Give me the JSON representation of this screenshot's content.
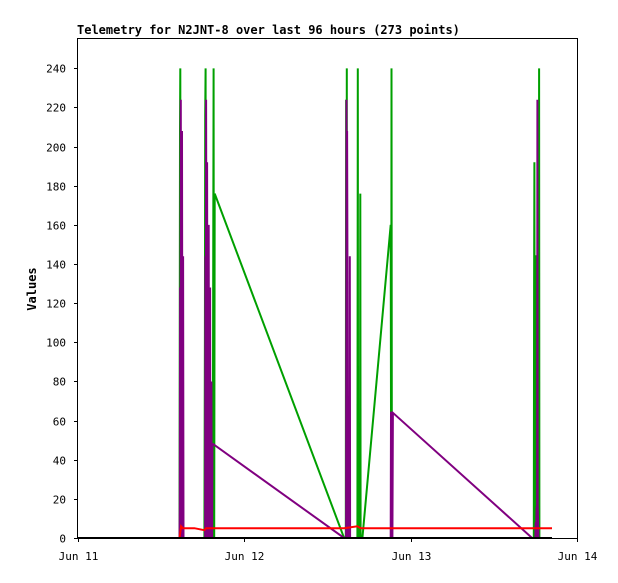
{
  "chart_data": {
    "type": "line",
    "title": "Telemetry for N2JNT-8 over last 96 hours (273 points)",
    "xlabel": "",
    "ylabel": "Values",
    "xlim": [
      0,
      3
    ],
    "ylim": [
      0,
      255
    ],
    "grid": false,
    "x_ticks": [
      {
        "value": 0,
        "label": "Jun 11"
      },
      {
        "value": 1,
        "label": "Jun 12"
      },
      {
        "value": 2,
        "label": "Jun 13"
      },
      {
        "value": 3,
        "label": "Jun 14"
      }
    ],
    "y_ticks": [
      0,
      20,
      40,
      60,
      80,
      100,
      120,
      140,
      160,
      180,
      200,
      220,
      240
    ],
    "series": [
      {
        "color": "#00a000",
        "x": [
          0.0,
          0.61,
          0.613,
          0.615,
          0.618,
          0.62,
          0.623,
          0.625,
          0.628,
          0.63,
          0.76,
          0.763,
          0.765,
          0.767,
          0.769,
          0.771,
          0.773,
          0.775,
          0.78,
          0.79,
          0.81,
          0.815,
          0.817,
          0.819,
          0.822,
          1.6,
          1.61,
          1.612,
          1.614,
          1.616,
          1.618,
          1.62,
          1.622,
          1.624,
          1.65,
          1.68,
          1.682,
          1.684,
          1.69,
          1.695,
          1.697,
          1.699,
          1.71,
          1.88,
          1.883,
          1.885,
          1.887,
          1.889,
          1.891,
          1.893,
          2.73,
          2.74,
          2.742,
          2.744,
          2.746,
          2.748,
          2.75,
          2.752,
          2.754,
          2.756,
          2.758,
          2.76,
          2.77,
          2.772,
          2.774,
          2.776,
          2.778,
          2.78,
          2.85
        ],
        "values": [
          0,
          0,
          208,
          240,
          0,
          0,
          0,
          0,
          0,
          0,
          0,
          104,
          216,
          240,
          0,
          0,
          0,
          0,
          0,
          0,
          0,
          240,
          0,
          0,
          176,
          0,
          0,
          224,
          0,
          240,
          0,
          0,
          0,
          0,
          0,
          0,
          240,
          0,
          0,
          0,
          176,
          0,
          0,
          160,
          0,
          240,
          0,
          0,
          0,
          0,
          0,
          0,
          128,
          192,
          0,
          0,
          144,
          144,
          144,
          0,
          0,
          0,
          0,
          240,
          0,
          0,
          0,
          0,
          0
        ]
      },
      {
        "color": "#800080",
        "x": [
          0.0,
          0.61,
          0.612,
          0.614,
          0.616,
          0.618,
          0.62,
          0.623,
          0.625,
          0.628,
          0.63,
          0.632,
          0.634,
          0.636,
          0.76,
          0.762,
          0.764,
          0.766,
          0.768,
          0.77,
          0.772,
          0.774,
          0.776,
          0.778,
          0.78,
          0.782,
          0.784,
          0.786,
          0.788,
          0.79,
          0.792,
          0.794,
          0.796,
          0.798,
          0.8,
          0.802,
          0.804,
          0.806,
          0.808,
          0.81,
          0.813,
          1.6,
          1.61,
          1.612,
          1.614,
          1.616,
          1.618,
          1.62,
          1.622,
          1.624,
          1.626,
          1.63,
          1.632,
          1.634,
          1.636,
          1.68,
          1.682,
          1.684,
          1.686,
          1.688,
          1.69,
          1.72,
          1.88,
          1.882,
          1.884,
          1.886,
          1.888,
          1.89,
          1.893,
          2.73,
          2.74,
          2.742,
          2.744,
          2.746,
          2.748,
          2.75,
          2.752,
          2.754,
          2.756,
          2.758,
          2.76,
          2.762,
          2.764,
          2.766,
          2.768,
          2.77,
          2.772,
          2.774,
          2.776,
          2.78
        ],
        "values": [
          0,
          0,
          16,
          128,
          0,
          224,
          0,
          0,
          208,
          0,
          0,
          144,
          0,
          0,
          0,
          0,
          0,
          144,
          0,
          224,
          128,
          0,
          192,
          64,
          144,
          0,
          80,
          160,
          0,
          64,
          0,
          128,
          0,
          64,
          0,
          80,
          0,
          0,
          48,
          48,
          48,
          0,
          0,
          0,
          224,
          0,
          208,
          128,
          0,
          0,
          0,
          8,
          8,
          144,
          0,
          0,
          0,
          0,
          0,
          0,
          0,
          0,
          0,
          64,
          64,
          0,
          0,
          0,
          64,
          0,
          0,
          0,
          0,
          0,
          0,
          0,
          8,
          0,
          8,
          16,
          0,
          224,
          16,
          8,
          0,
          0,
          0,
          0,
          0,
          0
        ]
      },
      {
        "color": "#ff0000",
        "x": [
          0.0,
          0.61,
          0.62,
          0.63,
          0.7,
          0.76,
          0.77,
          0.8,
          0.85,
          1.6,
          1.68,
          1.7,
          2.0,
          2.5,
          2.78,
          2.85
        ],
        "values": [
          0,
          0,
          6,
          5,
          5,
          4,
          5,
          5,
          5,
          5,
          6,
          5,
          5,
          5,
          5,
          5
        ]
      },
      {
        "color": "#000000",
        "x": [
          0.0,
          2.85
        ],
        "values": [
          0,
          0
        ]
      }
    ]
  }
}
